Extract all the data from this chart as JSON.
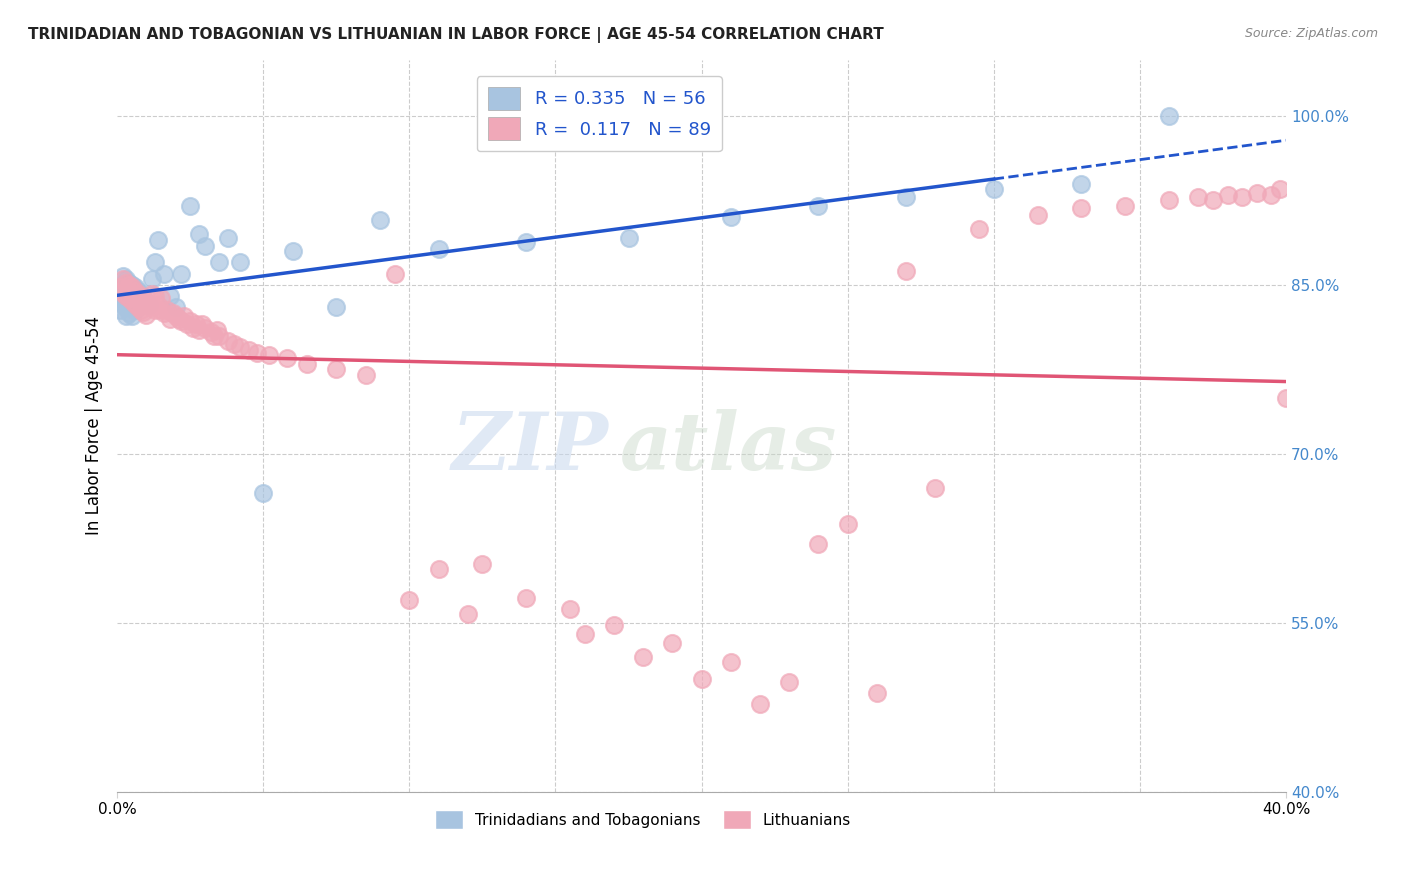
{
  "title": "TRINIDADIAN AND TOBAGONIAN VS LITHUANIAN IN LABOR FORCE | AGE 45-54 CORRELATION CHART",
  "source": "Source: ZipAtlas.com",
  "ylabel": "In Labor Force | Age 45-54",
  "xlim": [
    0.0,
    0.4
  ],
  "ylim": [
    0.4,
    1.05
  ],
  "yticks": [
    0.4,
    0.55,
    0.7,
    0.85,
    1.0
  ],
  "ytick_labels": [
    "40.0%",
    "55.0%",
    "70.0%",
    "85.0%",
    "100.0%"
  ],
  "blue_color": "#a8c4e0",
  "pink_color": "#f0a8b8",
  "trend_blue": "#2255cc",
  "trend_pink": "#e05575",
  "legend_R_blue": "0.335",
  "legend_N_blue": "56",
  "legend_R_pink": "0.117",
  "legend_N_pink": "89",
  "watermark_zip": "ZIP",
  "watermark_atlas": "atlas",
  "blue_points_x": [
    0.001,
    0.001,
    0.001,
    0.002,
    0.002,
    0.002,
    0.002,
    0.003,
    0.003,
    0.003,
    0.003,
    0.003,
    0.004,
    0.004,
    0.004,
    0.004,
    0.005,
    0.005,
    0.005,
    0.005,
    0.006,
    0.006,
    0.006,
    0.007,
    0.007,
    0.008,
    0.008,
    0.009,
    0.01,
    0.011,
    0.012,
    0.013,
    0.014,
    0.016,
    0.018,
    0.02,
    0.022,
    0.025,
    0.028,
    0.03,
    0.035,
    0.038,
    0.042,
    0.05,
    0.06,
    0.075,
    0.09,
    0.11,
    0.14,
    0.175,
    0.21,
    0.24,
    0.27,
    0.3,
    0.33,
    0.36
  ],
  "blue_points_y": [
    0.848,
    0.838,
    0.828,
    0.858,
    0.848,
    0.84,
    0.832,
    0.855,
    0.845,
    0.838,
    0.83,
    0.822,
    0.852,
    0.843,
    0.835,
    0.825,
    0.85,
    0.84,
    0.832,
    0.822,
    0.848,
    0.838,
    0.828,
    0.845,
    0.835,
    0.842,
    0.832,
    0.838,
    0.835,
    0.832,
    0.855,
    0.87,
    0.89,
    0.86,
    0.84,
    0.83,
    0.86,
    0.92,
    0.895,
    0.885,
    0.87,
    0.892,
    0.87,
    0.665,
    0.88,
    0.83,
    0.908,
    0.882,
    0.888,
    0.892,
    0.91,
    0.92,
    0.928,
    0.935,
    0.94,
    1.0
  ],
  "pink_points_x": [
    0.001,
    0.002,
    0.002,
    0.003,
    0.003,
    0.004,
    0.004,
    0.005,
    0.005,
    0.006,
    0.006,
    0.007,
    0.007,
    0.008,
    0.008,
    0.009,
    0.009,
    0.01,
    0.01,
    0.011,
    0.012,
    0.012,
    0.013,
    0.013,
    0.014,
    0.015,
    0.015,
    0.016,
    0.017,
    0.018,
    0.019,
    0.02,
    0.021,
    0.022,
    0.023,
    0.024,
    0.025,
    0.026,
    0.027,
    0.028,
    0.029,
    0.03,
    0.032,
    0.033,
    0.034,
    0.035,
    0.038,
    0.04,
    0.042,
    0.045,
    0.048,
    0.052,
    0.058,
    0.065,
    0.075,
    0.085,
    0.095,
    0.11,
    0.125,
    0.14,
    0.155,
    0.17,
    0.19,
    0.21,
    0.23,
    0.25,
    0.27,
    0.295,
    0.315,
    0.33,
    0.345,
    0.36,
    0.37,
    0.375,
    0.38,
    0.385,
    0.39,
    0.395,
    0.398,
    0.4,
    0.1,
    0.12,
    0.16,
    0.18,
    0.2,
    0.22,
    0.24,
    0.26,
    0.28
  ],
  "pink_points_y": [
    0.848,
    0.855,
    0.843,
    0.852,
    0.84,
    0.85,
    0.838,
    0.848,
    0.836,
    0.845,
    0.833,
    0.842,
    0.83,
    0.84,
    0.828,
    0.838,
    0.826,
    0.835,
    0.823,
    0.832,
    0.83,
    0.842,
    0.828,
    0.84,
    0.832,
    0.828,
    0.838,
    0.825,
    0.828,
    0.82,
    0.825,
    0.822,
    0.82,
    0.818,
    0.822,
    0.815,
    0.818,
    0.812,
    0.815,
    0.81,
    0.815,
    0.812,
    0.808,
    0.805,
    0.81,
    0.805,
    0.8,
    0.798,
    0.795,
    0.792,
    0.79,
    0.788,
    0.785,
    0.78,
    0.775,
    0.77,
    0.86,
    0.598,
    0.602,
    0.572,
    0.562,
    0.548,
    0.532,
    0.515,
    0.498,
    0.638,
    0.862,
    0.9,
    0.912,
    0.918,
    0.92,
    0.925,
    0.928,
    0.925,
    0.93,
    0.928,
    0.932,
    0.93,
    0.935,
    0.75,
    0.57,
    0.558,
    0.54,
    0.52,
    0.5,
    0.478,
    0.62,
    0.488,
    0.67
  ]
}
